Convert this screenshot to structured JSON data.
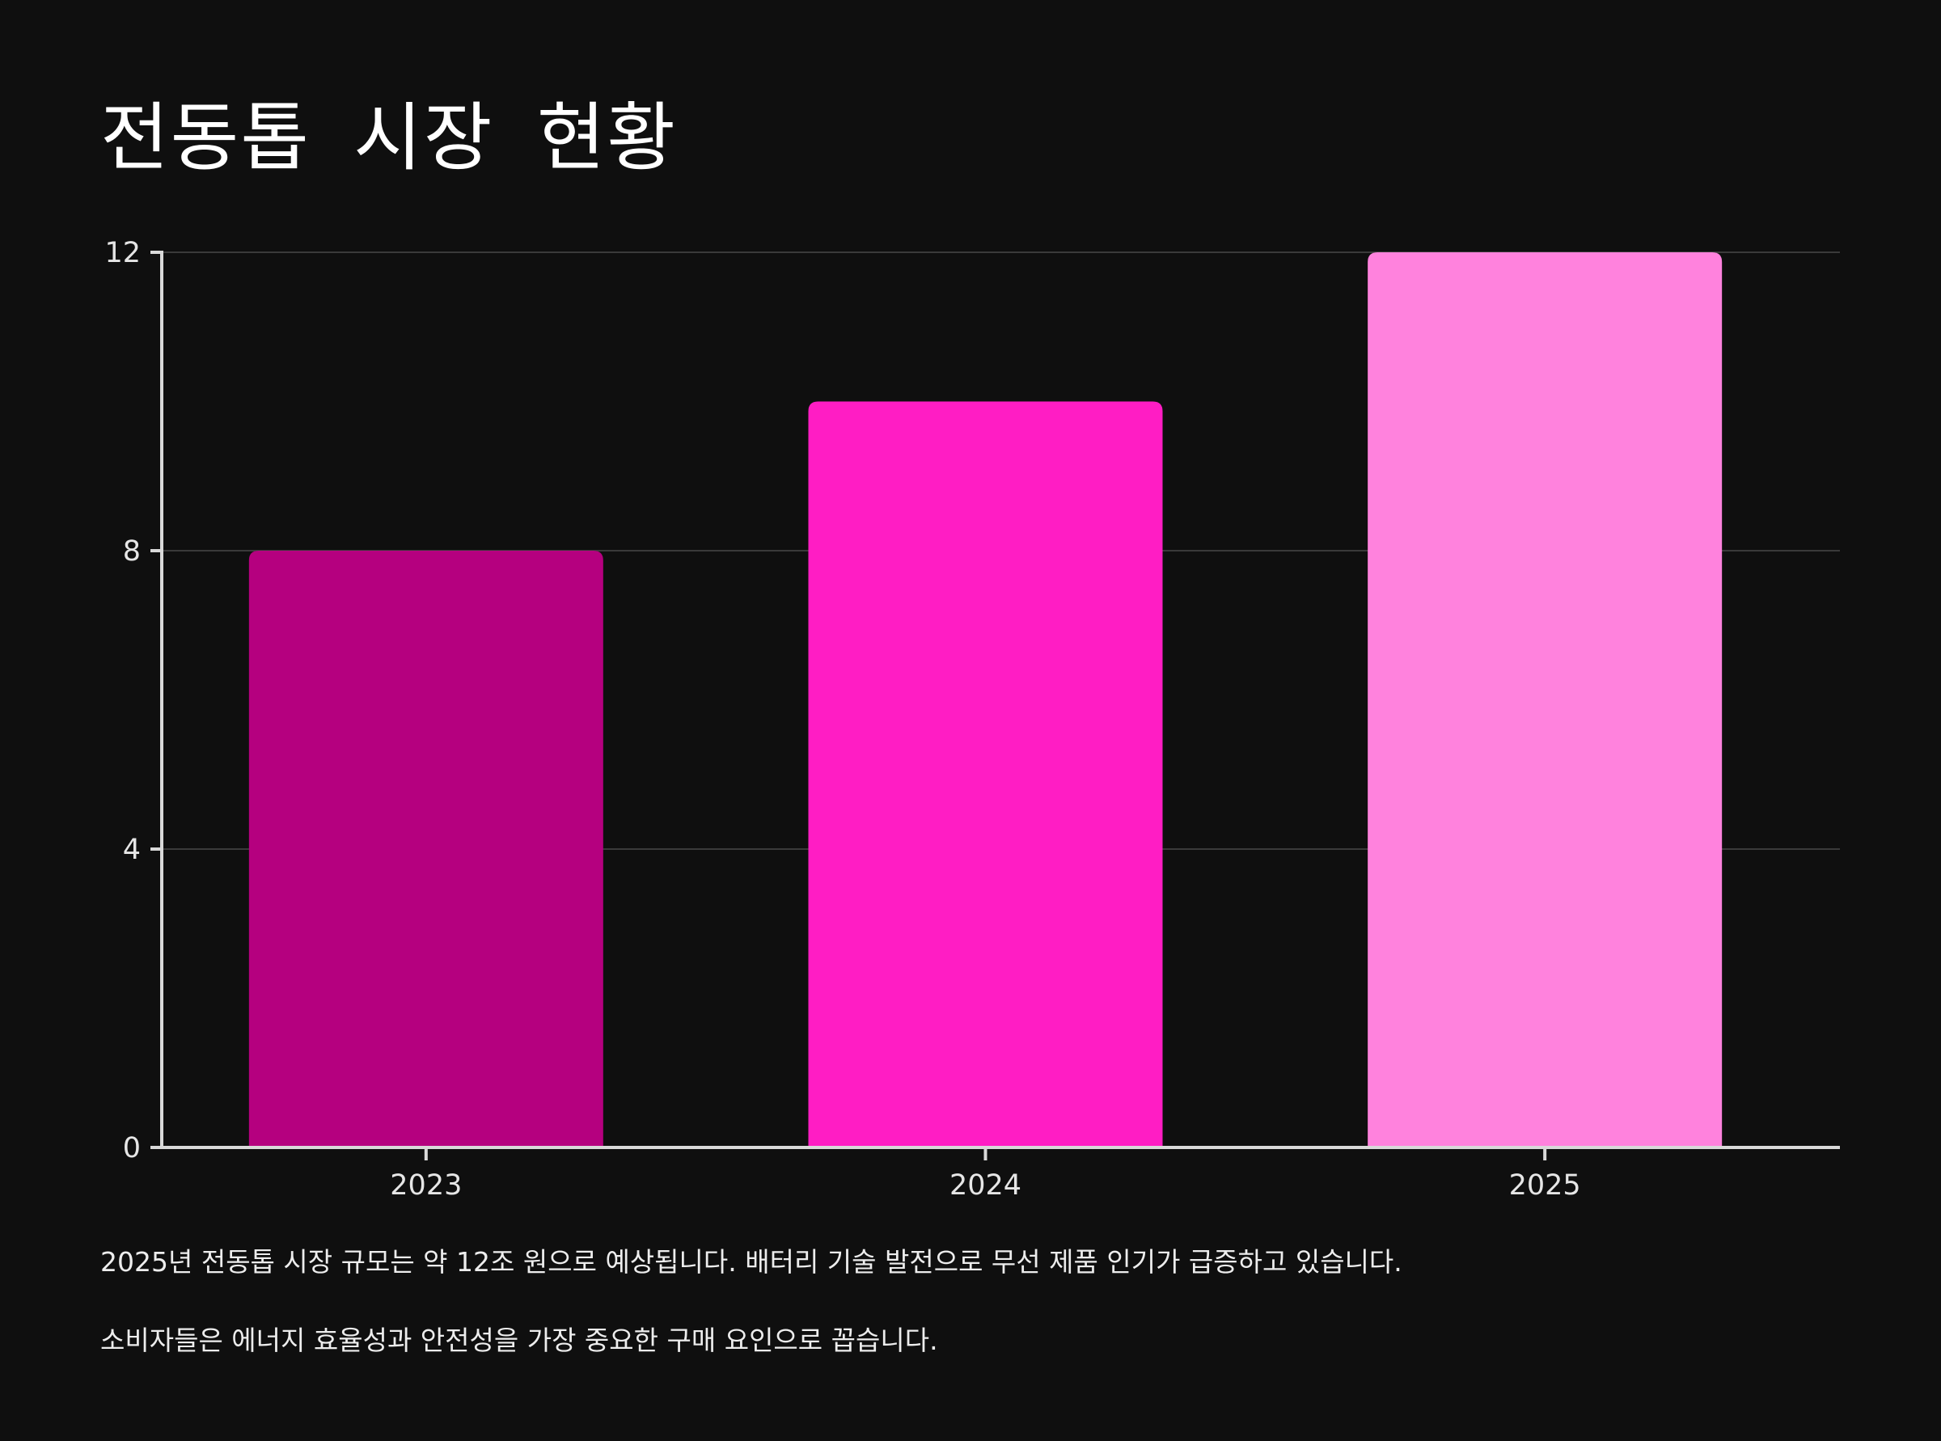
{
  "title": "전동톱  시장  현황",
  "colors": {
    "background": "#0f0f0f",
    "grid": "#3a3a3a",
    "axis": "#d9d9d9",
    "bars": [
      "#b5007f",
      "#ff1dc4",
      "#ff82dd"
    ]
  },
  "chart_data": {
    "type": "bar",
    "title": "전동톱  시장  현황",
    "xlabel": "",
    "ylabel": "",
    "categories": [
      "2023",
      "2024",
      "2025"
    ],
    "values": [
      8,
      10,
      12
    ],
    "ylim": [
      0,
      12
    ],
    "yticks": [
      0,
      4,
      8,
      12
    ],
    "grid": true,
    "legend": "none"
  },
  "notes": {
    "line1": "2025년 전동톱 시장 규모는 약 12조 원으로 예상됩니다. 배터리 기술 발전으로 무선 제품 인기가 급증하고 있습니다.",
    "line2": "소비자들은 에너지 효율성과 안전성을 가장 중요한 구매 요인으로 꼽습니다."
  }
}
